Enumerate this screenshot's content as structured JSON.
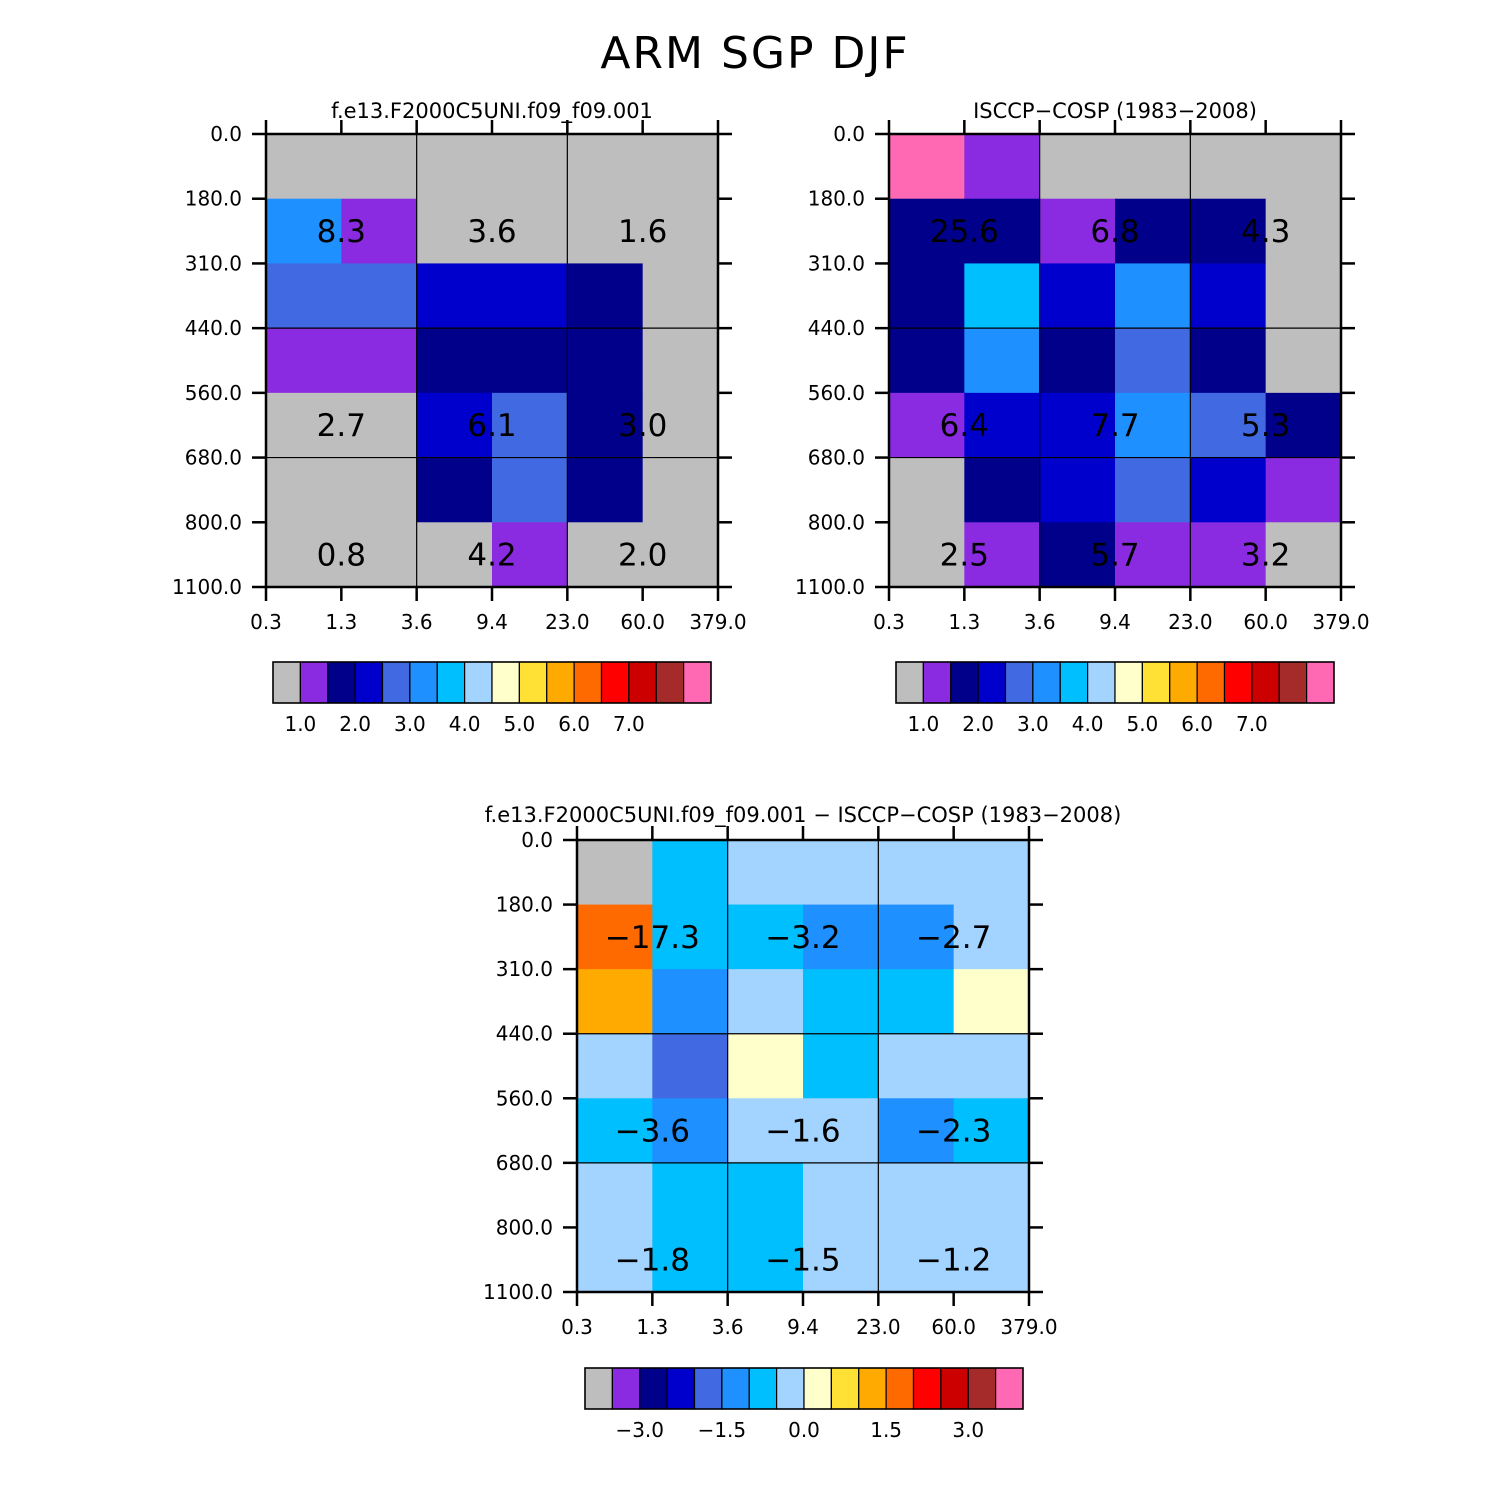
{
  "figure_title": "ARM SGP DJF",
  "colors": {
    "seq": [
      "#bebebe",
      "#8a2be2",
      "#00008b",
      "#0000cd",
      "#4169e1",
      "#1e90ff",
      "#00bfff",
      "#a3d3ff",
      "#ffffcc",
      "#ffe135",
      "#ffaa00",
      "#ff6a00",
      "#ff0000",
      "#cd0000",
      "#a52a2a",
      "#ff69b4"
    ],
    "diff": [
      "#bebebe",
      "#8a2be2",
      "#00008b",
      "#0000cd",
      "#4169e1",
      "#1e90ff",
      "#00bfff",
      "#a3d3ff",
      "#ffffcc",
      "#ffe135",
      "#ffaa00",
      "#ff6a00",
      "#ff0000",
      "#cd0000",
      "#a52a2a",
      "#ff69b4"
    ]
  },
  "chart_data": [
    {
      "type": "heatmap",
      "title": "f.e13.F2000C5UNI.f09_f09.001",
      "x_ticks": [
        "0.3",
        "1.3",
        "3.6",
        "9.4",
        "23.0",
        "60.0",
        "379.0"
      ],
      "y_ticks": [
        "0.0",
        "180.0",
        "310.0",
        "440.0",
        "560.0",
        "680.0",
        "800.0",
        "1100.0"
      ],
      "cells": [
        [
          0,
          0,
          0,
          0,
          0,
          0
        ],
        [
          5,
          1,
          0,
          0,
          0,
          0
        ],
        [
          4,
          4,
          3,
          3,
          2,
          0
        ],
        [
          1,
          1,
          2,
          2,
          2,
          0
        ],
        [
          0,
          0,
          3,
          4,
          2,
          0
        ],
        [
          0,
          0,
          2,
          4,
          2,
          0
        ],
        [
          0,
          0,
          0,
          1,
          0,
          0
        ]
      ],
      "value_labels": [
        {
          "text": "8.3",
          "row": 1,
          "col": 0
        },
        {
          "text": "3.6",
          "row": 1,
          "col": 2
        },
        {
          "text": "1.6",
          "row": 1,
          "col": 4
        },
        {
          "text": "2.7",
          "row": 4,
          "col": 0
        },
        {
          "text": "6.1",
          "row": 4,
          "col": 2
        },
        {
          "text": "3.0",
          "row": 4,
          "col": 4
        },
        {
          "text": "0.8",
          "row": 6,
          "col": 0
        },
        {
          "text": "4.2",
          "row": 6,
          "col": 2
        },
        {
          "text": "2.0",
          "row": 6,
          "col": 4
        }
      ],
      "colorbar": {
        "palette": "seq",
        "labels": [
          "1.0",
          "2.0",
          "3.0",
          "4.0",
          "5.0",
          "6.0",
          "7.0"
        ],
        "label_start_box": 1
      }
    },
    {
      "type": "heatmap",
      "title": "ISCCP-COSP (1983-2008)",
      "x_ticks": [
        "0.3",
        "1.3",
        "3.6",
        "9.4",
        "23.0",
        "60.0",
        "379.0"
      ],
      "y_ticks": [
        "0.0",
        "180.0",
        "310.0",
        "440.0",
        "560.0",
        "680.0",
        "800.0",
        "1100.0"
      ],
      "cells": [
        [
          15,
          1,
          0,
          0,
          0,
          0
        ],
        [
          2,
          2,
          1,
          2,
          2,
          0
        ],
        [
          2,
          6,
          3,
          5,
          3,
          0
        ],
        [
          2,
          5,
          2,
          4,
          2,
          0
        ],
        [
          1,
          3,
          3,
          5,
          4,
          2
        ],
        [
          0,
          2,
          3,
          4,
          3,
          1
        ],
        [
          0,
          1,
          2,
          1,
          1,
          0
        ]
      ],
      "value_labels": [
        {
          "text": "25.6",
          "row": 1,
          "col": 0
        },
        {
          "text": "6.8",
          "row": 1,
          "col": 2
        },
        {
          "text": "4.3",
          "row": 1,
          "col": 4
        },
        {
          "text": "6.4",
          "row": 4,
          "col": 0
        },
        {
          "text": "7.7",
          "row": 4,
          "col": 2
        },
        {
          "text": "5.3",
          "row": 4,
          "col": 4
        },
        {
          "text": "2.5",
          "row": 6,
          "col": 0
        },
        {
          "text": "5.7",
          "row": 6,
          "col": 2
        },
        {
          "text": "3.2",
          "row": 6,
          "col": 4
        }
      ],
      "colorbar": {
        "palette": "seq",
        "labels": [
          "1.0",
          "2.0",
          "3.0",
          "4.0",
          "5.0",
          "6.0",
          "7.0"
        ],
        "label_start_box": 1
      }
    },
    {
      "type": "heatmap",
      "title": "f.e13.F2000C5UNI.f09_f09.001 - ISCCP-COSP (1983-2008)",
      "x_ticks": [
        "0.3",
        "1.3",
        "3.6",
        "9.4",
        "23.0",
        "60.0",
        "379.0"
      ],
      "y_ticks": [
        "0.0",
        "180.0",
        "310.0",
        "440.0",
        "560.0",
        "680.0",
        "800.0",
        "1100.0"
      ],
      "cells": [
        [
          0,
          6,
          7,
          7,
          7,
          7
        ],
        [
          11,
          6,
          6,
          5,
          5,
          7
        ],
        [
          10,
          5,
          7,
          6,
          6,
          8
        ],
        [
          7,
          4,
          8,
          6,
          7,
          7
        ],
        [
          6,
          5,
          7,
          7,
          5,
          6
        ],
        [
          7,
          6,
          6,
          7,
          7,
          7
        ],
        [
          7,
          6,
          6,
          7,
          7,
          7
        ]
      ],
      "value_labels": [
        {
          "text": "-17.3",
          "row": 1,
          "col": 0
        },
        {
          "text": "-3.2",
          "row": 1,
          "col": 2
        },
        {
          "text": "-2.7",
          "row": 1,
          "col": 4
        },
        {
          "text": "-3.6",
          "row": 4,
          "col": 0
        },
        {
          "text": "-1.6",
          "row": 4,
          "col": 2
        },
        {
          "text": "-2.3",
          "row": 4,
          "col": 4
        },
        {
          "text": "-1.8",
          "row": 6,
          "col": 0
        },
        {
          "text": "-1.5",
          "row": 6,
          "col": 2
        },
        {
          "text": "-1.2",
          "row": 6,
          "col": 4
        }
      ],
      "colorbar": {
        "palette": "diff",
        "labels": [
          "-3.0",
          "-1.5",
          "0.0",
          "1.5",
          "3.0"
        ],
        "label_start_box": 2
      }
    }
  ]
}
